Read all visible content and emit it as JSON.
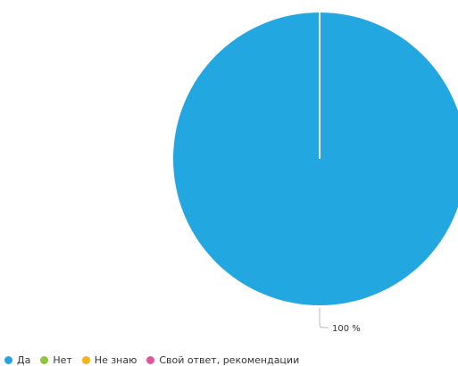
{
  "chart_data": {
    "type": "pie",
    "labels": [
      "Да",
      "Нет",
      "Не знаю",
      "Свой ответ, рекомендации"
    ],
    "values": [
      100,
      0,
      0,
      0
    ],
    "colors": [
      "#22a7e0",
      "#8cc63f",
      "#f8b01a",
      "#e0559a"
    ],
    "data_labels": [
      "100 %"
    ],
    "legend_position": "bottom-left",
    "title": ""
  },
  "legend": {
    "items": [
      {
        "label": "Да",
        "color": "#22a7e0"
      },
      {
        "label": "Нет",
        "color": "#8cc63f"
      },
      {
        "label": "Не знаю",
        "color": "#f8b01a"
      },
      {
        "label": "Свой ответ, рекомендации",
        "color": "#e0559a"
      }
    ]
  }
}
